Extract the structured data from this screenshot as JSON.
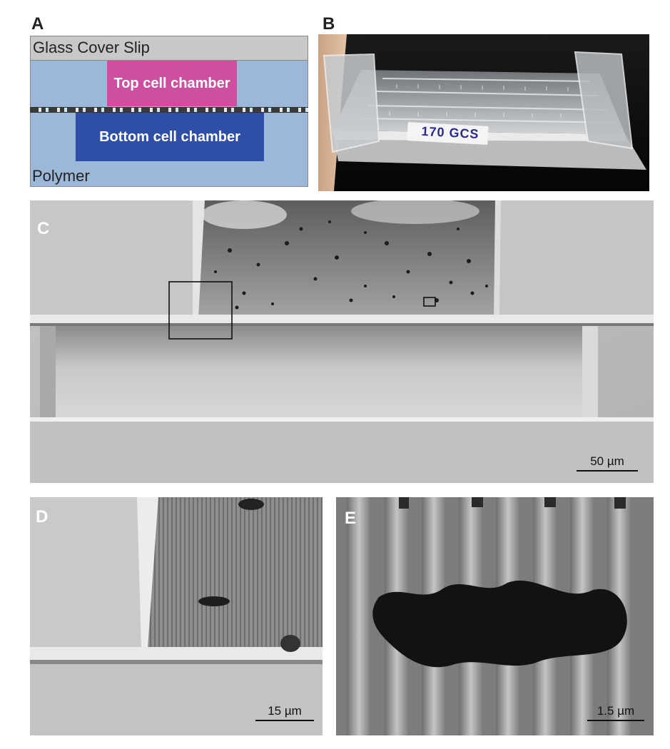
{
  "panels": {
    "a": {
      "letter": "A",
      "glass_label": "Glass Cover Slip",
      "top_chamber": "Top cell chamber",
      "bottom_chamber": "Bottom cell chamber",
      "polymer_label": "Polymer"
    },
    "b": {
      "letter": "B",
      "slide_label": "170 GCS"
    },
    "c": {
      "letter": "C",
      "scale": "50 µm"
    },
    "d": {
      "letter": "D",
      "scale": "15 µm"
    },
    "e": {
      "letter": "E",
      "scale": "1.5 µm"
    }
  },
  "colors": {
    "glass": "#c8c8c8",
    "polymer": "#9bb8d9",
    "top_chamber": "#cc4fa0",
    "bottom_chamber": "#2f4fa6"
  }
}
